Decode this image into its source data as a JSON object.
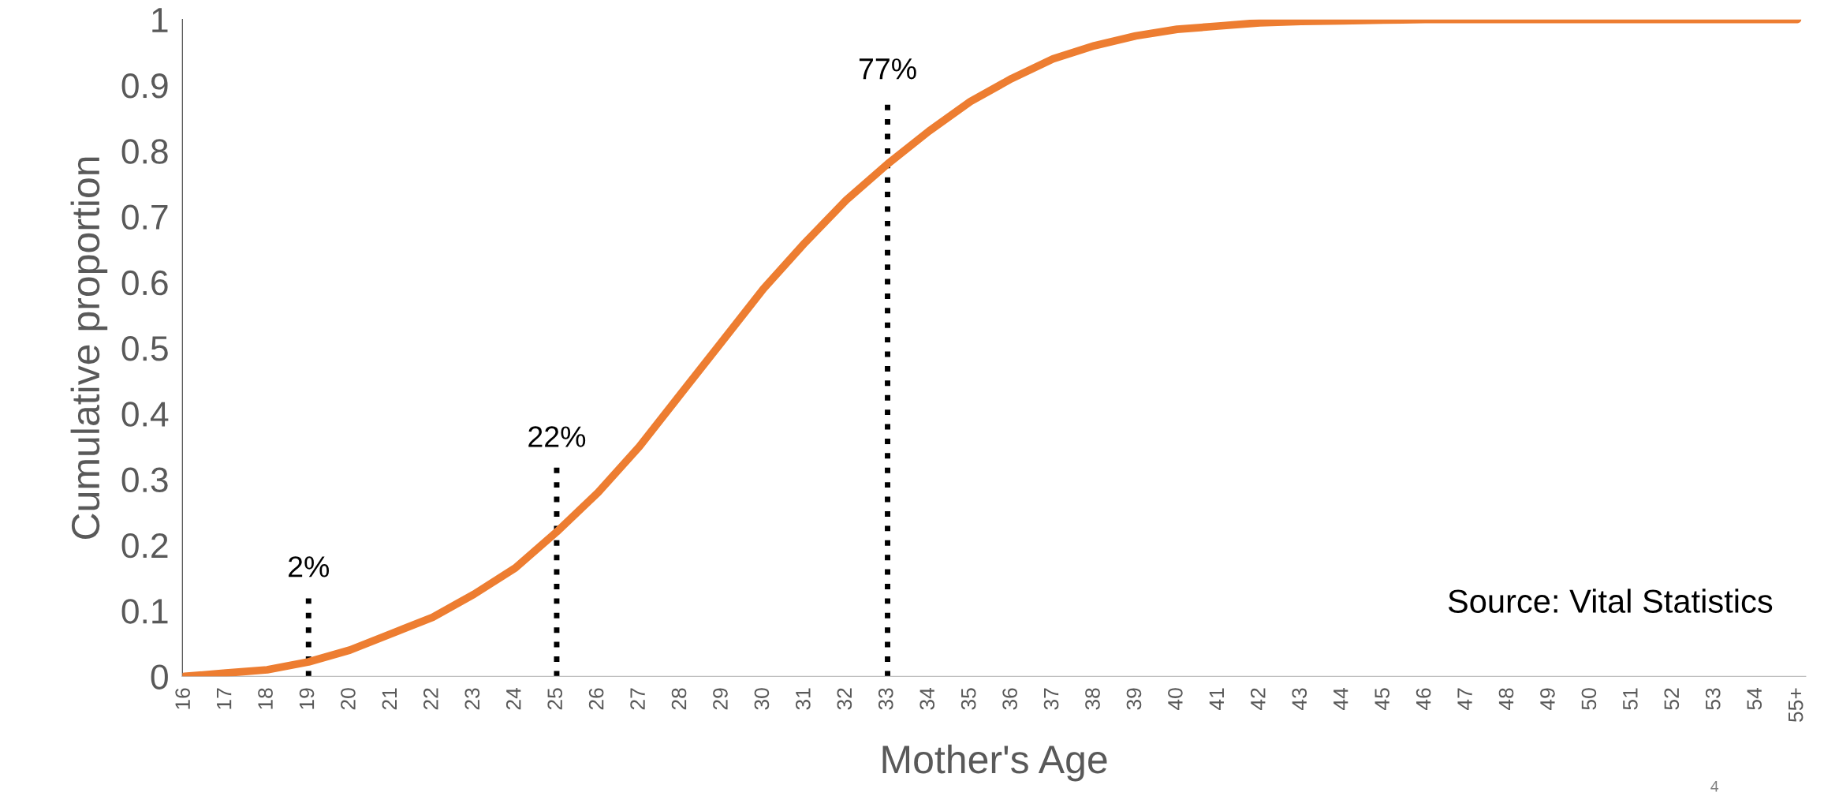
{
  "chart_data": {
    "type": "line",
    "xlabel": "Mother's Age",
    "ylabel": "Cumulative proportion",
    "categories": [
      "16",
      "17",
      "18",
      "19",
      "20",
      "21",
      "22",
      "23",
      "24",
      "25",
      "26",
      "27",
      "28",
      "29",
      "30",
      "31",
      "32",
      "33",
      "34",
      "35",
      "36",
      "37",
      "38",
      "39",
      "40",
      "41",
      "42",
      "43",
      "44",
      "45",
      "46",
      "47",
      "48",
      "49",
      "50",
      "51",
      "52",
      "53",
      "54",
      "55+"
    ],
    "series": [
      {
        "color": "#ed7d31",
        "values": [
          0.0,
          0.005,
          0.01,
          0.022,
          0.04,
          0.065,
          0.09,
          0.125,
          0.165,
          0.22,
          0.28,
          0.35,
          0.43,
          0.51,
          0.59,
          0.66,
          0.725,
          0.78,
          0.83,
          0.875,
          0.91,
          0.94,
          0.96,
          0.975,
          0.985,
          0.99,
          0.995,
          0.997,
          0.998,
          0.999,
          1.0,
          1.0,
          1.0,
          1.0,
          1.0,
          1.0,
          1.0,
          1.0,
          1.0,
          1.0
        ]
      }
    ],
    "ylim": [
      0,
      1
    ],
    "yticks": [
      0,
      0.1,
      0.2,
      0.3,
      0.4,
      0.5,
      0.6,
      0.7,
      0.8,
      0.9,
      1
    ],
    "marker": "none",
    "line_style": "solid",
    "ref_lines": [
      {
        "axis": "x",
        "value": "19",
        "label": "2%",
        "color": "#000000",
        "line_style": "dotted"
      },
      {
        "axis": "x",
        "value": "25",
        "label": "22%",
        "color": "#000000",
        "line_style": "dotted"
      },
      {
        "axis": "x",
        "value": "33",
        "label": "77%",
        "color": "#000000",
        "line_style": "dotted"
      }
    ],
    "annotations": [
      "Source: Vital Statistics",
      "4"
    ]
  }
}
